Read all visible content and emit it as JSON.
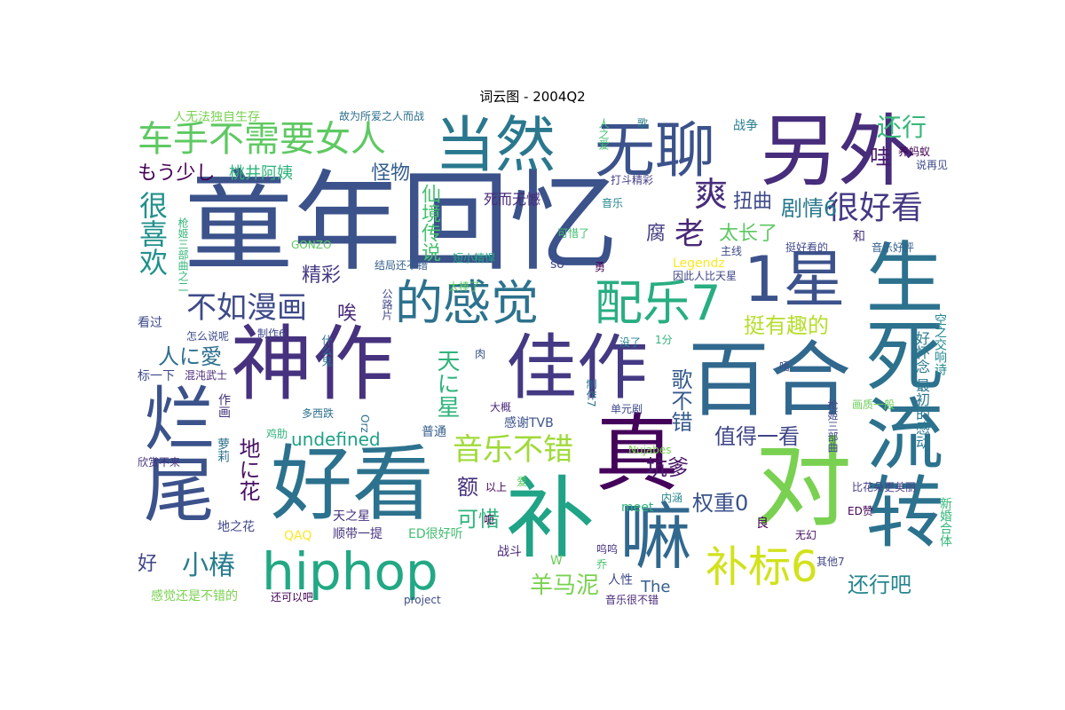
{
  "title": "词云图 - 2004Q2",
  "words": [
    {
      "text": "童年回忆",
      "color": "#3b528b"
    },
    {
      "text": "另外",
      "color": "#472d7b"
    },
    {
      "text": "无聊",
      "color": "#3b528b"
    },
    {
      "text": "当然",
      "color": "#2a788e"
    },
    {
      "text": "神作",
      "color": "#46327e"
    },
    {
      "text": "佳作",
      "color": "#443983"
    },
    {
      "text": "好看",
      "color": "#2c728e"
    },
    {
      "text": "补",
      "color": "#20a386"
    },
    {
      "text": "对",
      "color": "#7ad151"
    },
    {
      "text": "百合",
      "color": "#31688e"
    },
    {
      "text": "真",
      "color": "#44015a"
    },
    {
      "text": "嘛",
      "color": "#31688e"
    },
    {
      "text": "生死流转",
      "color": "#2c728e"
    },
    {
      "text": "1星",
      "color": "#3b528b"
    },
    {
      "text": "烂尾",
      "color": "#3b528b"
    },
    {
      "text": "hiphop",
      "color": "#22a884"
    },
    {
      "text": "的感觉",
      "color": "#2c728e"
    },
    {
      "text": "配乐7",
      "color": "#28ae80"
    },
    {
      "text": "补标6",
      "color": "#d2e21b"
    },
    {
      "text": "车手不需要女人",
      "color": "#5ec962"
    },
    {
      "text": "爽",
      "color": "#472d7b"
    },
    {
      "text": "很好看",
      "color": "#443983"
    },
    {
      "text": "剧情6",
      "color": "#2a788e"
    },
    {
      "text": "扭曲",
      "color": "#3e4a89"
    },
    {
      "text": "老",
      "color": "#482878"
    },
    {
      "text": "腐",
      "color": "#433e85"
    },
    {
      "text": "太长了",
      "color": "#5ec962"
    },
    {
      "text": "挺有趣的",
      "color": "#b5de2b"
    },
    {
      "text": "还行",
      "color": "#35b779"
    },
    {
      "text": "哇",
      "color": "#481a6c"
    },
    {
      "text": "很喜欢",
      "color": "#21918c"
    },
    {
      "text": "不如漫画",
      "color": "#3e4a89"
    },
    {
      "text": "精彩",
      "color": "#443983"
    },
    {
      "text": "唉",
      "color": "#482878"
    },
    {
      "text": "怪物",
      "color": "#355f8d"
    },
    {
      "text": "桃井阿姨",
      "color": "#2fb47c"
    },
    {
      "text": "もう少し",
      "color": "#440154"
    },
    {
      "text": "仙境传说",
      "color": "#46c06f"
    },
    {
      "text": "死而无憾",
      "color": "#482878"
    },
    {
      "text": "小椿",
      "color": "#287d8e"
    },
    {
      "text": "音乐不错",
      "color": "#a0da39"
    },
    {
      "text": "值得一看",
      "color": "#404688"
    },
    {
      "text": "坑爹",
      "color": "#481668"
    },
    {
      "text": "权重0",
      "color": "#3b528b"
    },
    {
      "text": "羊马泥",
      "color": "#7ad151"
    },
    {
      "text": "还行吧",
      "color": "#24868e"
    },
    {
      "text": "人に愛",
      "color": "#2d708e"
    },
    {
      "text": "天に星",
      "color": "#2fb47c"
    },
    {
      "text": "地に花",
      "color": "#471063"
    },
    {
      "text": "歌不错",
      "color": "#375b8d"
    },
    {
      "text": "undefined",
      "color": "#1fa188"
    },
    {
      "text": "可惜",
      "color": "#2fb47c"
    },
    {
      "text": "额",
      "color": "#46327e"
    },
    {
      "text": "好",
      "color": "#414487"
    },
    {
      "text": "感谢TVB",
      "color": "#3b528b"
    },
    {
      "text": "空之交响诗",
      "color": "#23898e"
    },
    {
      "text": "好怀念 最初的感动",
      "color": "#2a788e"
    },
    {
      "text": "人无法独自生存",
      "color": "#7ad151"
    },
    {
      "text": "故为所爱之人而战",
      "color": "#2d708e"
    },
    {
      "text": "战争",
      "color": "#287d8e"
    },
    {
      "text": "人之爱",
      "color": "#42be71"
    },
    {
      "text": "歌",
      "color": "#287d8e"
    },
    {
      "text": "养蚂蚁",
      "color": "#440154"
    },
    {
      "text": "说再见",
      "color": "#3e4a89"
    },
    {
      "text": "打斗精彩",
      "color": "#433e85"
    },
    {
      "text": "音乐",
      "color": "#24868e"
    },
    {
      "text": "枪姬三部曲之二",
      "color": "#35b779"
    },
    {
      "text": "可惜了",
      "color": "#42be71"
    },
    {
      "text": "挺好看的",
      "color": "#404688"
    },
    {
      "text": "和",
      "color": "#46327e"
    },
    {
      "text": "音乐好评",
      "color": "#355f8d"
    },
    {
      "text": "GONZO",
      "color": "#5ec962"
    },
    {
      "text": "短小精悍",
      "color": "#22a884"
    },
    {
      "text": "Legendz",
      "color": "#fde725"
    },
    {
      "text": "主线",
      "color": "#3e4a89"
    },
    {
      "text": "结局还不错",
      "color": "#355f8d"
    },
    {
      "text": "so",
      "color": "#404688"
    },
    {
      "text": "因此人比天星",
      "color": "#404688"
    },
    {
      "text": "太棒了",
      "color": "#5ec962"
    },
    {
      "text": "公路片",
      "color": "#404688"
    },
    {
      "text": "看过",
      "color": "#3e4a89"
    },
    {
      "text": "怎么说呢",
      "color": "#3e4a89"
    },
    {
      "text": "制作6",
      "color": "#3e4a89"
    },
    {
      "text": "什么鬼",
      "color": "#2d708e"
    },
    {
      "text": "肉",
      "color": "#3b528b"
    },
    {
      "text": "没了",
      "color": "#24868e"
    },
    {
      "text": "1分",
      "color": "#2fb47c"
    },
    {
      "text": "唔",
      "color": "#3e4a89"
    },
    {
      "text": "标一下",
      "color": "#3e4a89"
    },
    {
      "text": "混沌武士",
      "color": "#482878"
    },
    {
      "text": "作画",
      "color": "#46327e"
    },
    {
      "text": "鸡肋",
      "color": "#2fb47c"
    },
    {
      "text": "多西跌",
      "color": "#2d708e"
    },
    {
      "text": "大概",
      "color": "#482878"
    },
    {
      "text": "制作7",
      "color": "#2d708e"
    },
    {
      "text": "单元剧",
      "color": "#3e4a89"
    },
    {
      "text": "画质一般",
      "color": "#6ccd5a"
    },
    {
      "text": "枪姬三部曲",
      "color": "#404688"
    },
    {
      "text": "普通",
      "color": "#355f8d"
    },
    {
      "text": "Orz",
      "color": "#2d708e"
    },
    {
      "text": "萝莉",
      "color": "#2d708e"
    },
    {
      "text": "欣赏不来",
      "color": "#46327e"
    },
    {
      "text": "Nujabes",
      "color": "#7ad151"
    },
    {
      "text": "以上",
      "color": "#440154"
    },
    {
      "text": "爱",
      "color": "#5ec962"
    },
    {
      "text": "内涵",
      "color": "#24868e"
    },
    {
      "text": "比花朵更美丽",
      "color": "#433e85"
    },
    {
      "text": "meet",
      "color": "#2fb47c"
    },
    {
      "text": "良",
      "color": "#440154"
    },
    {
      "text": "地之花",
      "color": "#404688"
    },
    {
      "text": "顺带一提",
      "color": "#46327e"
    },
    {
      "text": "天之星",
      "color": "#46327e"
    },
    {
      "text": "ED赞",
      "color": "#440154"
    },
    {
      "text": "QAQ",
      "color": "#fde725"
    },
    {
      "text": "ED很好听",
      "color": "#42be71"
    },
    {
      "text": "W",
      "color": "#6ccd5a"
    },
    {
      "text": "呜呜",
      "color": "#46327e"
    },
    {
      "text": "无幻",
      "color": "#471063"
    },
    {
      "text": "新婚合体",
      "color": "#35b779"
    },
    {
      "text": "战斗",
      "color": "#482878"
    },
    {
      "text": "乔",
      "color": "#4ac16d"
    },
    {
      "text": "其他7",
      "color": "#404688"
    },
    {
      "text": "人性",
      "color": "#3e4a89"
    },
    {
      "text": "The",
      "color": "#355f8d"
    },
    {
      "text": "感觉还是不错的",
      "color": "#7ad151"
    },
    {
      "text": "还可以吧",
      "color": "#440154"
    },
    {
      "text": "project",
      "color": "#3e4a89"
    },
    {
      "text": "音乐很不错",
      "color": "#482878"
    },
    {
      "text": "呃",
      "color": "#440154"
    },
    {
      "text": "勇",
      "color": "#440154"
    }
  ]
}
